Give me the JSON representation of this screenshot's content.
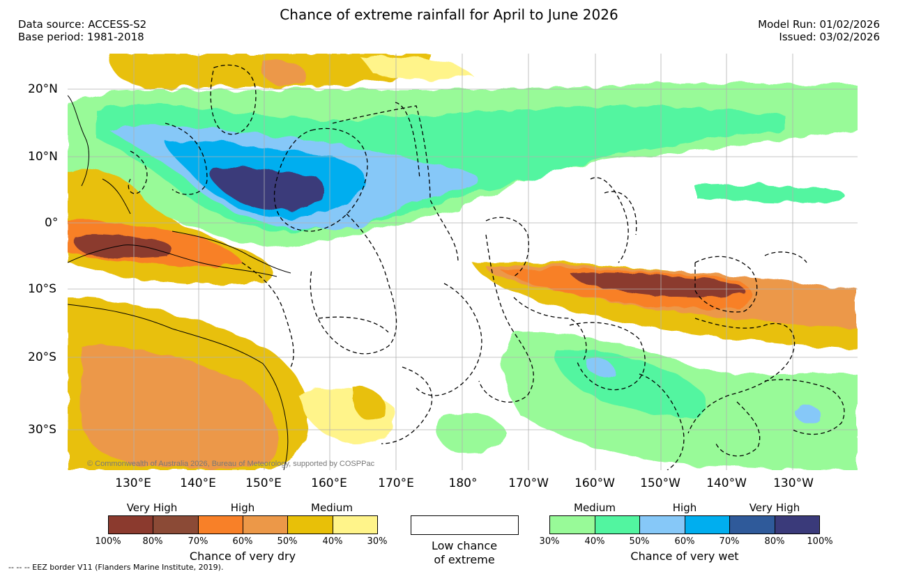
{
  "header": {
    "title": "Chance of extreme rainfall for April to June 2026",
    "data_source": "Data source: ACCESS-S2",
    "base_period": "Base period: 1981-2018",
    "model_run": "Model Run: 01/02/2026",
    "issued": "Issued: 03/02/2026"
  },
  "map": {
    "lon_labels": [
      "130°E",
      "140°E",
      "150°E",
      "160°E",
      "170°E",
      "180°",
      "170°W",
      "160°W",
      "150°W",
      "140°W",
      "130°W"
    ],
    "lat_labels": [
      "20°N",
      "10°N",
      "0°",
      "10°S",
      "20°S",
      "30°S"
    ],
    "credit": "© Commonwealth of Australia 2026, Bureau of Meteorology, supported by COSPPac",
    "colors": {
      "dry_very_high": "#8B3A2E",
      "dry_very_high_b": "#8B4A36",
      "dry_high": "#F88028",
      "dry_high_b": "#EC9848",
      "dry_medium": "#E8C008",
      "dry_medium_b": "#FFF48A",
      "wet_medium": "#98FA98",
      "wet_medium_b": "#52F5A0",
      "wet_high": "#86C8F8",
      "wet_high_b": "#00AEEF",
      "wet_very_high": "#2F5A9A",
      "wet_very_high_b": "#3A3A7A"
    }
  },
  "legend": {
    "dry": {
      "categories": [
        "Very High",
        "High",
        "Medium"
      ],
      "ticks": [
        "100%",
        "80%",
        "70%",
        "60%",
        "50%",
        "40%",
        "30%"
      ],
      "colors": [
        "#8B3A2E",
        "#8B4A36",
        "#F88028",
        "#EC9848",
        "#E8C008",
        "#FFF48A"
      ],
      "title": "Chance of very dry"
    },
    "low": {
      "line1": "Low chance",
      "line2": "of extreme"
    },
    "wet": {
      "categories": [
        "Medium",
        "High",
        "Very High"
      ],
      "ticks": [
        "30%",
        "40%",
        "50%",
        "60%",
        "70%",
        "80%",
        "100%"
      ],
      "colors": [
        "#98FA98",
        "#52F5A0",
        "#86C8F8",
        "#00AEEF",
        "#2F5A9A",
        "#3A3A7A"
      ],
      "title": "Chance of very wet"
    }
  },
  "footer": {
    "eez_note": "--  --  -- EEZ border V11 (Flanders Marine Institute, 2019)."
  }
}
